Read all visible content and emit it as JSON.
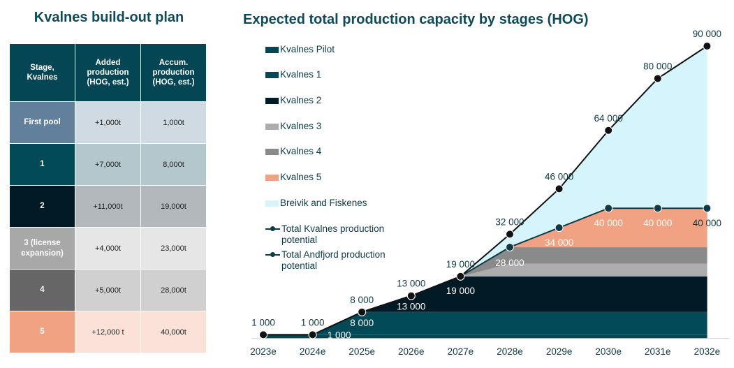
{
  "left_title": "Kvalnes build-out plan",
  "table": {
    "headers": [
      "Stage, Kvalnes",
      "Added production (HOG, est.)",
      "Accum. production (HOG, est.)"
    ],
    "rows": [
      {
        "stage": "First pool",
        "added": "+1,000t",
        "accum": "1,000t",
        "stage_color": "#62809c",
        "cell_color": "#d0dae2"
      },
      {
        "stage": "1",
        "added": "+7,000t",
        "accum": "8,000t",
        "stage_color": "#034a59",
        "cell_color": "#b3c7cc"
      },
      {
        "stage": "2",
        "added": "+11,000t",
        "accum": "19,000t",
        "stage_color": "#021a25",
        "cell_color": "#b2b8bb"
      },
      {
        "stage": "3 (license expansion)",
        "added": "+4,000t",
        "accum": "23,000t",
        "stage_color": "#a8a8a8",
        "cell_color": "#e6e6e6"
      },
      {
        "stage": "4",
        "added": "+5,000t",
        "accum": "28,000t",
        "stage_color": "#666666",
        "cell_color": "#d0d0d0"
      },
      {
        "stage": "5",
        "added": "+12,000 t",
        "accum": "40,000t",
        "stage_color": "#f0a283",
        "cell_color": "#fbe1d8"
      }
    ]
  },
  "chart_data": {
    "type": "area",
    "title": "Expected total production capacity by stages (HOG)",
    "xlabel": "",
    "ylabel": "",
    "ylim": [
      0,
      90000
    ],
    "grid": false,
    "legend_position": "top-left",
    "categories": [
      "2023e",
      "2024e",
      "2025e",
      "2026e",
      "2027e",
      "2028e",
      "2029e",
      "2030e",
      "2031e",
      "2032e"
    ],
    "series": [
      {
        "name": "Kvalnes Pilot",
        "color": "#054654",
        "values": [
          1000,
          1000,
          1000,
          1000,
          1000,
          1000,
          1000,
          1000,
          1000,
          1000
        ]
      },
      {
        "name": "Kvalnes 1",
        "color": "#034a59",
        "values": [
          0,
          0,
          7000,
          7000,
          7000,
          7000,
          7000,
          7000,
          7000,
          7000
        ]
      },
      {
        "name": "Kvalnes 2",
        "color": "#021a25",
        "values": [
          0,
          0,
          0,
          5000,
          11000,
          11000,
          11000,
          11000,
          11000,
          11000
        ]
      },
      {
        "name": "Kvalnes 3",
        "color": "#adadad",
        "values": [
          0,
          0,
          0,
          0,
          0,
          4000,
          4000,
          4000,
          4000,
          4000
        ]
      },
      {
        "name": "Kvalnes 4",
        "color": "#8a8a8a",
        "values": [
          0,
          0,
          0,
          0,
          0,
          5000,
          5000,
          5000,
          5000,
          5000
        ]
      },
      {
        "name": "Kvalnes 5",
        "color": "#f0a283",
        "values": [
          0,
          0,
          0,
          0,
          0,
          0,
          6000,
          12000,
          12000,
          12000
        ]
      },
      {
        "name": "Breivik and Fiskenes",
        "color": "#d5f4fb",
        "values": [
          0,
          0,
          0,
          0,
          0,
          4000,
          12000,
          24000,
          40000,
          50000
        ]
      }
    ],
    "lines": [
      {
        "name": "Total Kvalnes production potential",
        "color": "#0e3a48",
        "values": [
          1000,
          1000,
          8000,
          13000,
          19000,
          28000,
          34000,
          40000,
          40000,
          40000
        ],
        "labels": [
          "",
          "1 000",
          "8 000",
          "13 000",
          "19 000",
          "28 000",
          "34 000",
          "40 000",
          "40 000",
          "40 000"
        ]
      },
      {
        "name": "Total Andfjord production potential",
        "color": "#111111",
        "values": [
          1000,
          1000,
          8000,
          13000,
          19000,
          32000,
          46000,
          64000,
          80000,
          90000
        ],
        "labels": [
          "1 000",
          "1 000",
          "8 000",
          "13 000",
          "19 000",
          "32 000",
          "46 000",
          "64 000",
          "80 000",
          "90 000"
        ]
      }
    ]
  },
  "legend": {
    "items": [
      {
        "label": "Kvalnes Pilot",
        "kind": "swatch",
        "color": "#054654"
      },
      {
        "label": "Kvalnes 1",
        "kind": "swatch",
        "color": "#034a59"
      },
      {
        "label": "Kvalnes 2",
        "kind": "swatch",
        "color": "#021a25"
      },
      {
        "label": "Kvalnes 3",
        "kind": "swatch",
        "color": "#adadad"
      },
      {
        "label": "Kvalnes 4",
        "kind": "swatch",
        "color": "#8a8a8a"
      },
      {
        "label": "Kvalnes 5",
        "kind": "swatch",
        "color": "#f0a283"
      },
      {
        "label": "Breivik and Fiskenes",
        "kind": "swatch",
        "color": "#d5f4fb"
      },
      {
        "label": "Total Kvalnes production potential",
        "kind": "line"
      },
      {
        "label": "Total Andfjord production potential",
        "kind": "line"
      }
    ]
  }
}
